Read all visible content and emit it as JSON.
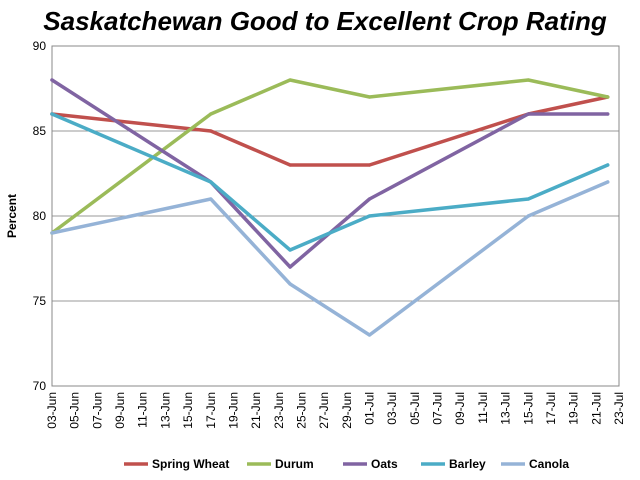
{
  "chart_data": {
    "type": "line",
    "title": "Saskatchewan Good to Excellent Crop Rating",
    "xlabel": "",
    "ylabel": "Percent",
    "ylim": [
      70,
      90
    ],
    "yticks": [
      "70",
      "75",
      "80",
      "85",
      "90"
    ],
    "categories": [
      "03-Jun",
      "05-Jun",
      "07-Jun",
      "09-Jun",
      "11-Jun",
      "13-Jun",
      "15-Jun",
      "17-Jun",
      "19-Jun",
      "21-Jun",
      "23-Jun",
      "25-Jun",
      "27-Jun",
      "29-Jun",
      "01-Jul",
      "03-Jul",
      "05-Jul",
      "07-Jul",
      "09-Jul",
      "11-Jul",
      "13-Jul",
      "15-Jul",
      "17-Jul",
      "19-Jul",
      "21-Jul",
      "23-Jul"
    ],
    "grid": "horizontal",
    "legend_position": "bottom",
    "series": [
      {
        "name": "Spring Wheat",
        "color": "#c0504d",
        "x": [
          "03-Jun",
          "17-Jun",
          "24-Jun",
          "01-Jul",
          "15-Jul",
          "22-Jul"
        ],
        "values": [
          86,
          85,
          83,
          83,
          86,
          87
        ]
      },
      {
        "name": "Durum",
        "color": "#9bbb59",
        "x": [
          "03-Jun",
          "17-Jun",
          "24-Jun",
          "01-Jul",
          "15-Jul",
          "22-Jul"
        ],
        "values": [
          79,
          86,
          88,
          87,
          88,
          87
        ]
      },
      {
        "name": "Oats",
        "color": "#8064a2",
        "x": [
          "03-Jun",
          "17-Jun",
          "24-Jun",
          "01-Jul",
          "15-Jul",
          "22-Jul"
        ],
        "values": [
          88,
          82,
          77,
          81,
          86,
          86
        ]
      },
      {
        "name": "Barley",
        "color": "#4bacc6",
        "x": [
          "03-Jun",
          "17-Jun",
          "24-Jun",
          "01-Jul",
          "15-Jul",
          "22-Jul"
        ],
        "values": [
          86,
          82,
          78,
          80,
          81,
          83
        ]
      },
      {
        "name": "Canola",
        "color": "#95b3d7",
        "x": [
          "03-Jun",
          "17-Jun",
          "24-Jun",
          "01-Jul",
          "15-Jul",
          "22-Jul"
        ],
        "values": [
          79,
          81,
          76,
          73,
          80,
          82
        ]
      }
    ]
  }
}
